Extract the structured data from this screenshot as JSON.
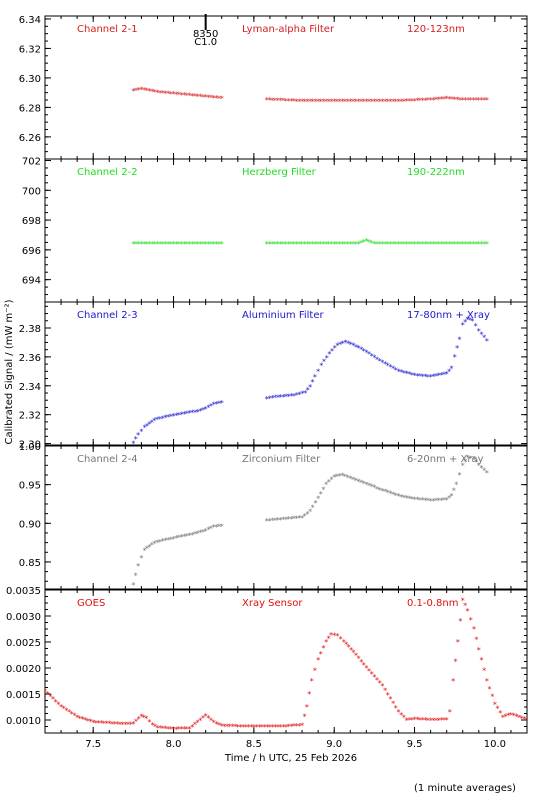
{
  "figure": {
    "ylabel": "Calibrated Signal / (mW m⁻²)",
    "xlabel": "Time / h UTC, 25 Feb 2026",
    "footnote": "(1 minute averages)",
    "xlim": [
      7.2,
      10.2
    ],
    "xticks": [
      "7.5",
      "8.0",
      "8.5",
      "9.0",
      "9.5",
      "10.0"
    ],
    "marker": {
      "label_top": "8350",
      "label_bottom": "C1.0",
      "x": 8.2
    }
  },
  "chart_data": [
    {
      "type": "scatter",
      "panel": "Channel 2-1",
      "labels": {
        "channel": "Channel 2-1",
        "filter": "Lyman-alpha Filter",
        "band": "120-123nm"
      },
      "color": "#d62020",
      "ylim": [
        6.245,
        6.342
      ],
      "yticks": [
        "6.26",
        "6.28",
        "6.30",
        "6.32",
        "6.34"
      ],
      "segments": [
        {
          "x": [
            7.75,
            7.8,
            7.9,
            8.0,
            8.1,
            8.2,
            8.3
          ],
          "y": [
            6.291,
            6.292,
            6.29,
            6.289,
            6.288,
            6.287,
            6.286
          ]
        },
        {
          "x": [
            8.58,
            8.8,
            9.0,
            9.2,
            9.4,
            9.6,
            9.7,
            9.8,
            9.95
          ],
          "y": [
            6.285,
            6.284,
            6.284,
            6.284,
            6.284,
            6.285,
            6.286,
            6.285,
            6.285
          ]
        }
      ]
    },
    {
      "type": "scatter",
      "panel": "Channel 2-2",
      "labels": {
        "channel": "Channel 2-2",
        "filter": "Herzberg Filter",
        "band": "190-222nm"
      },
      "color": "#22dd22",
      "ylim": [
        692.5,
        702.1
      ],
      "yticks": [
        "694",
        "696",
        "698",
        "700",
        "702"
      ],
      "segments": [
        {
          "x": [
            7.75,
            8.0,
            8.3
          ],
          "y": [
            696.4,
            696.4,
            696.4
          ]
        },
        {
          "x": [
            8.58,
            9.0,
            9.15,
            9.2,
            9.25,
            9.5,
            9.95
          ],
          "y": [
            696.4,
            696.4,
            696.4,
            696.6,
            696.4,
            696.4,
            696.4
          ]
        }
      ]
    },
    {
      "type": "scatter",
      "panel": "Channel 2-3",
      "labels": {
        "channel": "Channel 2-3",
        "filter": "Aluminium Filter",
        "band": "17-80nm + Xray"
      },
      "color": "#1a1acc",
      "ylim": [
        2.299,
        2.398
      ],
      "yticks": [
        "2.30",
        "2.32",
        "2.34",
        "2.36",
        "2.38"
      ],
      "segments": [
        {
          "x": [
            7.75,
            7.78,
            7.82,
            7.88,
            7.95,
            8.0,
            8.05,
            8.1,
            8.15,
            8.2,
            8.25,
            8.3
          ],
          "y": [
            2.3,
            2.306,
            2.311,
            2.316,
            2.318,
            2.319,
            2.32,
            2.321,
            2.322,
            2.324,
            2.327,
            2.328
          ]
        },
        {
          "x": [
            8.58,
            8.65,
            8.75,
            8.82,
            8.85,
            8.88,
            8.92,
            8.97,
            9.02,
            9.07,
            9.12,
            9.2,
            9.3,
            9.4,
            9.5,
            9.6,
            9.7,
            9.73,
            9.75,
            9.78,
            9.8,
            9.83,
            9.86,
            9.9,
            9.95
          ],
          "y": [
            2.331,
            2.332,
            2.333,
            2.335,
            2.339,
            2.346,
            2.354,
            2.362,
            2.368,
            2.37,
            2.368,
            2.363,
            2.356,
            2.35,
            2.347,
            2.346,
            2.348,
            2.352,
            2.36,
            2.372,
            2.382,
            2.386,
            2.385,
            2.378,
            2.371
          ]
        }
      ]
    },
    {
      "type": "scatter",
      "panel": "Channel 2-4",
      "labels": {
        "channel": "Channel 2-4",
        "filter": "Zirconium Filter",
        "band": "6-20nm + Xray"
      },
      "color": "#777777",
      "ylim": [
        0.815,
        1.0
      ],
      "yticks": [
        "0.85",
        "0.90",
        "0.95",
        "1.00"
      ],
      "segments": [
        {
          "x": [
            7.75,
            7.78,
            7.82,
            7.88,
            7.95,
            8.0,
            8.1,
            8.2,
            8.25,
            8.3
          ],
          "y": [
            0.82,
            0.845,
            0.865,
            0.874,
            0.878,
            0.88,
            0.884,
            0.89,
            0.895,
            0.896
          ]
        },
        {
          "x": [
            8.58,
            8.7,
            8.8,
            8.85,
            8.9,
            8.95,
            9.0,
            9.05,
            9.1,
            9.2,
            9.3,
            9.4,
            9.5,
            9.6,
            9.7,
            9.73,
            9.76,
            9.8,
            9.83,
            9.87,
            9.9,
            9.95
          ],
          "y": [
            0.903,
            0.905,
            0.907,
            0.915,
            0.932,
            0.95,
            0.96,
            0.962,
            0.958,
            0.95,
            0.942,
            0.935,
            0.931,
            0.929,
            0.93,
            0.935,
            0.95,
            0.975,
            0.985,
            0.983,
            0.975,
            0.965
          ]
        }
      ]
    },
    {
      "type": "scatter",
      "panel": "GOES",
      "labels": {
        "channel": "GOES",
        "filter": "Xray Sensor",
        "band": "0.1-0.8nm"
      },
      "color": "#e01010",
      "ylim": [
        0.00075,
        0.0035
      ],
      "yticks": [
        "0.0010",
        "0.0015",
        "0.0020",
        "0.0025",
        "0.0030",
        "0.0035"
      ],
      "segments": [
        {
          "x": [
            7.2,
            7.3,
            7.4,
            7.5,
            7.6,
            7.7,
            7.75,
            7.8,
            7.83,
            7.87,
            7.9,
            8.0,
            8.1,
            8.15,
            8.2,
            8.25,
            8.3,
            8.4,
            8.5,
            8.6,
            8.7,
            8.8,
            8.83,
            8.86,
            8.9,
            8.95,
            8.98,
            9.02,
            9.06,
            9.12,
            9.2,
            9.3,
            9.35,
            9.4,
            9.45,
            9.5,
            9.6,
            9.7,
            9.72,
            9.74,
            9.77,
            9.8,
            9.83,
            9.87,
            9.9,
            9.95,
            10.0,
            10.05,
            10.1,
            10.2
          ],
          "y": [
            0.00155,
            0.00125,
            0.00105,
            0.00095,
            0.00093,
            0.00091,
            0.00092,
            0.00107,
            0.00103,
            0.0009,
            0.00085,
            0.00082,
            0.00083,
            0.00095,
            0.00108,
            0.00095,
            0.00088,
            0.00087,
            0.00087,
            0.00087,
            0.00087,
            0.00089,
            0.00125,
            0.00175,
            0.00215,
            0.0025,
            0.00263,
            0.00262,
            0.0025,
            0.0023,
            0.002,
            0.00165,
            0.0014,
            0.00115,
            0.00099,
            0.00101,
            0.00099,
            0.001,
            0.00115,
            0.00175,
            0.0025,
            0.0033,
            0.0031,
            0.00275,
            0.00235,
            0.00175,
            0.0013,
            0.00105,
            0.0011,
            0.001
          ]
        }
      ]
    }
  ]
}
